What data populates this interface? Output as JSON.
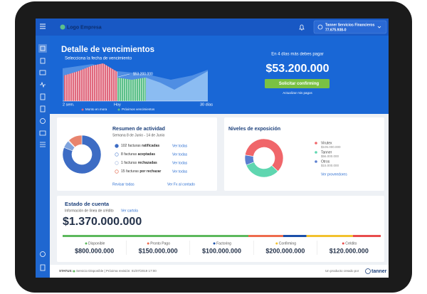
{
  "header": {
    "logo": "Logo Empresa",
    "user_name": "Tanner Servicios Financieros",
    "user_id": "77.675.938-0"
  },
  "hero": {
    "title": "Detalle de vencimientos",
    "subtitle": "Selecciona la fecha de vencimiento",
    "chart_label": "$53.200.000",
    "x_labels": [
      "2 sem.",
      "Hoy",
      "30 días"
    ],
    "legend": [
      "Monto en mora",
      "Próximos vencimientos"
    ],
    "due_text": "En 4 días más debes pagar",
    "due_amount": "$53.200.000",
    "button": "Solicitar confirming",
    "link": "Actualizar mis pagos"
  },
  "activity": {
    "title": "Resumen de actividad",
    "subtitle": "Semana 8 de Junio - 14 de Junio",
    "items": [
      {
        "count": 102,
        "noun": "facturas",
        "status": "ratificadas",
        "link": "Ver todas",
        "color": "#3d6cc4"
      },
      {
        "count": 8,
        "noun": "facturas",
        "status": "aceptadas",
        "link": "Ver todas",
        "color": "#7fa3dd"
      },
      {
        "count": 1,
        "noun": "facturas",
        "status": "rechazadas",
        "link": "Ver todas",
        "color": "#b9c9e6"
      },
      {
        "count": 15,
        "noun": "facturas",
        "status": "por rechazar",
        "link": "Ver todas",
        "color": "#e8846e"
      }
    ],
    "links": [
      "Revisar todas",
      "Ver Fx al contado"
    ]
  },
  "exposure": {
    "title": "Niveles de exposición",
    "items": [
      {
        "name": "Virutex",
        "amount": 105000000,
        "label": "$105.000.000",
        "color": "#f0666a"
      },
      {
        "name": "Tanner",
        "amount": 56000000,
        "label": "$56.000.000",
        "color": "#5fd6b0"
      },
      {
        "name": "Otros",
        "amount": 15000000,
        "label": "$15.000.000",
        "color": "#5a7fd0"
      }
    ],
    "link": "Ver proveedores"
  },
  "account": {
    "title": "Estado de cuenta",
    "subtitle": "Información de línea de crédito",
    "link": "Ver cartola",
    "total": "$1.370.000.000",
    "items": [
      {
        "name": "Disponible",
        "amount": 800000000,
        "label": "$800.000.000",
        "color": "#5cb85c"
      },
      {
        "name": "Pronto Pago",
        "amount": 150000000,
        "label": "$150.000.000",
        "color": "#ee6b4d"
      },
      {
        "name": "Factoring",
        "amount": 100000000,
        "label": "$100.000.000",
        "color": "#1b4fa8"
      },
      {
        "name": "Confirming",
        "amount": 200000000,
        "label": "$200.000.000",
        "color": "#f2c12e"
      },
      {
        "name": "Crédito",
        "amount": 120000000,
        "label": "$120.000.000",
        "color": "#e84c4c"
      }
    ]
  },
  "footer": {
    "status_label": "STATUS:",
    "status_text": "Servicio Disponible | Próxima revisión: 01/07/2019 17:00",
    "credit": "Un producto creado por",
    "brand": "tanner"
  }
}
